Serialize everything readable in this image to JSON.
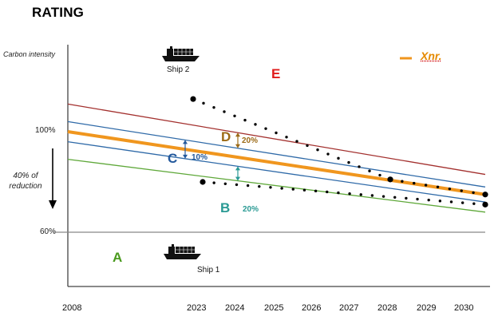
{
  "title": "RATING",
  "y_axis_label": "Carbon intensity",
  "reduction_label": "40% of reduction",
  "legend": {
    "label": "Xnr.",
    "color": "#f0961e"
  },
  "chart_data": {
    "type": "line",
    "title": "RATING",
    "ylabel": "Carbon intensity",
    "xlabel": "",
    "x_ticks": [
      "2008",
      "2023",
      "2024",
      "2025",
      "2026",
      "2027",
      "2028",
      "2029",
      "2030"
    ],
    "y_ticks": [
      "100%",
      "60%"
    ],
    "annotation": "40% of reduction",
    "series": [
      {
        "name": "E/D boundary",
        "color": "#a3302e",
        "values": {
          "2008": 111,
          "2030": 83
        }
      },
      {
        "name": "D/C boundary",
        "color": "#2f6aa8",
        "values": {
          "2008": 104,
          "2030": 78
        }
      },
      {
        "name": "Xnr.",
        "color": "#f0961e",
        "values": {
          "2008": 100,
          "2030": 75
        }
      },
      {
        "name": "C/B boundary",
        "color": "#2f6aa8",
        "values": {
          "2008": 96,
          "2030": 72
        }
      },
      {
        "name": "B/A boundary",
        "color": "#5fa83a",
        "values": {
          "2008": 89,
          "2030": 68
        }
      }
    ],
    "reference_line": {
      "label": "60%",
      "value": 60,
      "color": "#888888"
    },
    "zones": [
      {
        "label": "E",
        "color": "#e01b1b"
      },
      {
        "label": "D",
        "color": "#9c6a16",
        "band": "20%"
      },
      {
        "label": "C",
        "color": "#24599c",
        "band": "10%"
      },
      {
        "label": "B",
        "color": "#2a9a94",
        "band": "20%"
      },
      {
        "label": "A",
        "color": "#4a9a1e"
      }
    ],
    "trajectories": [
      {
        "name": "Ship 2",
        "points": [
          [
            "2023",
            113
          ],
          [
            "2028",
            81
          ],
          [
            "2030",
            75
          ]
        ]
      },
      {
        "name": "Ship 1",
        "points": [
          [
            "2023",
            80
          ],
          [
            "2030",
            71
          ]
        ]
      }
    ]
  }
}
